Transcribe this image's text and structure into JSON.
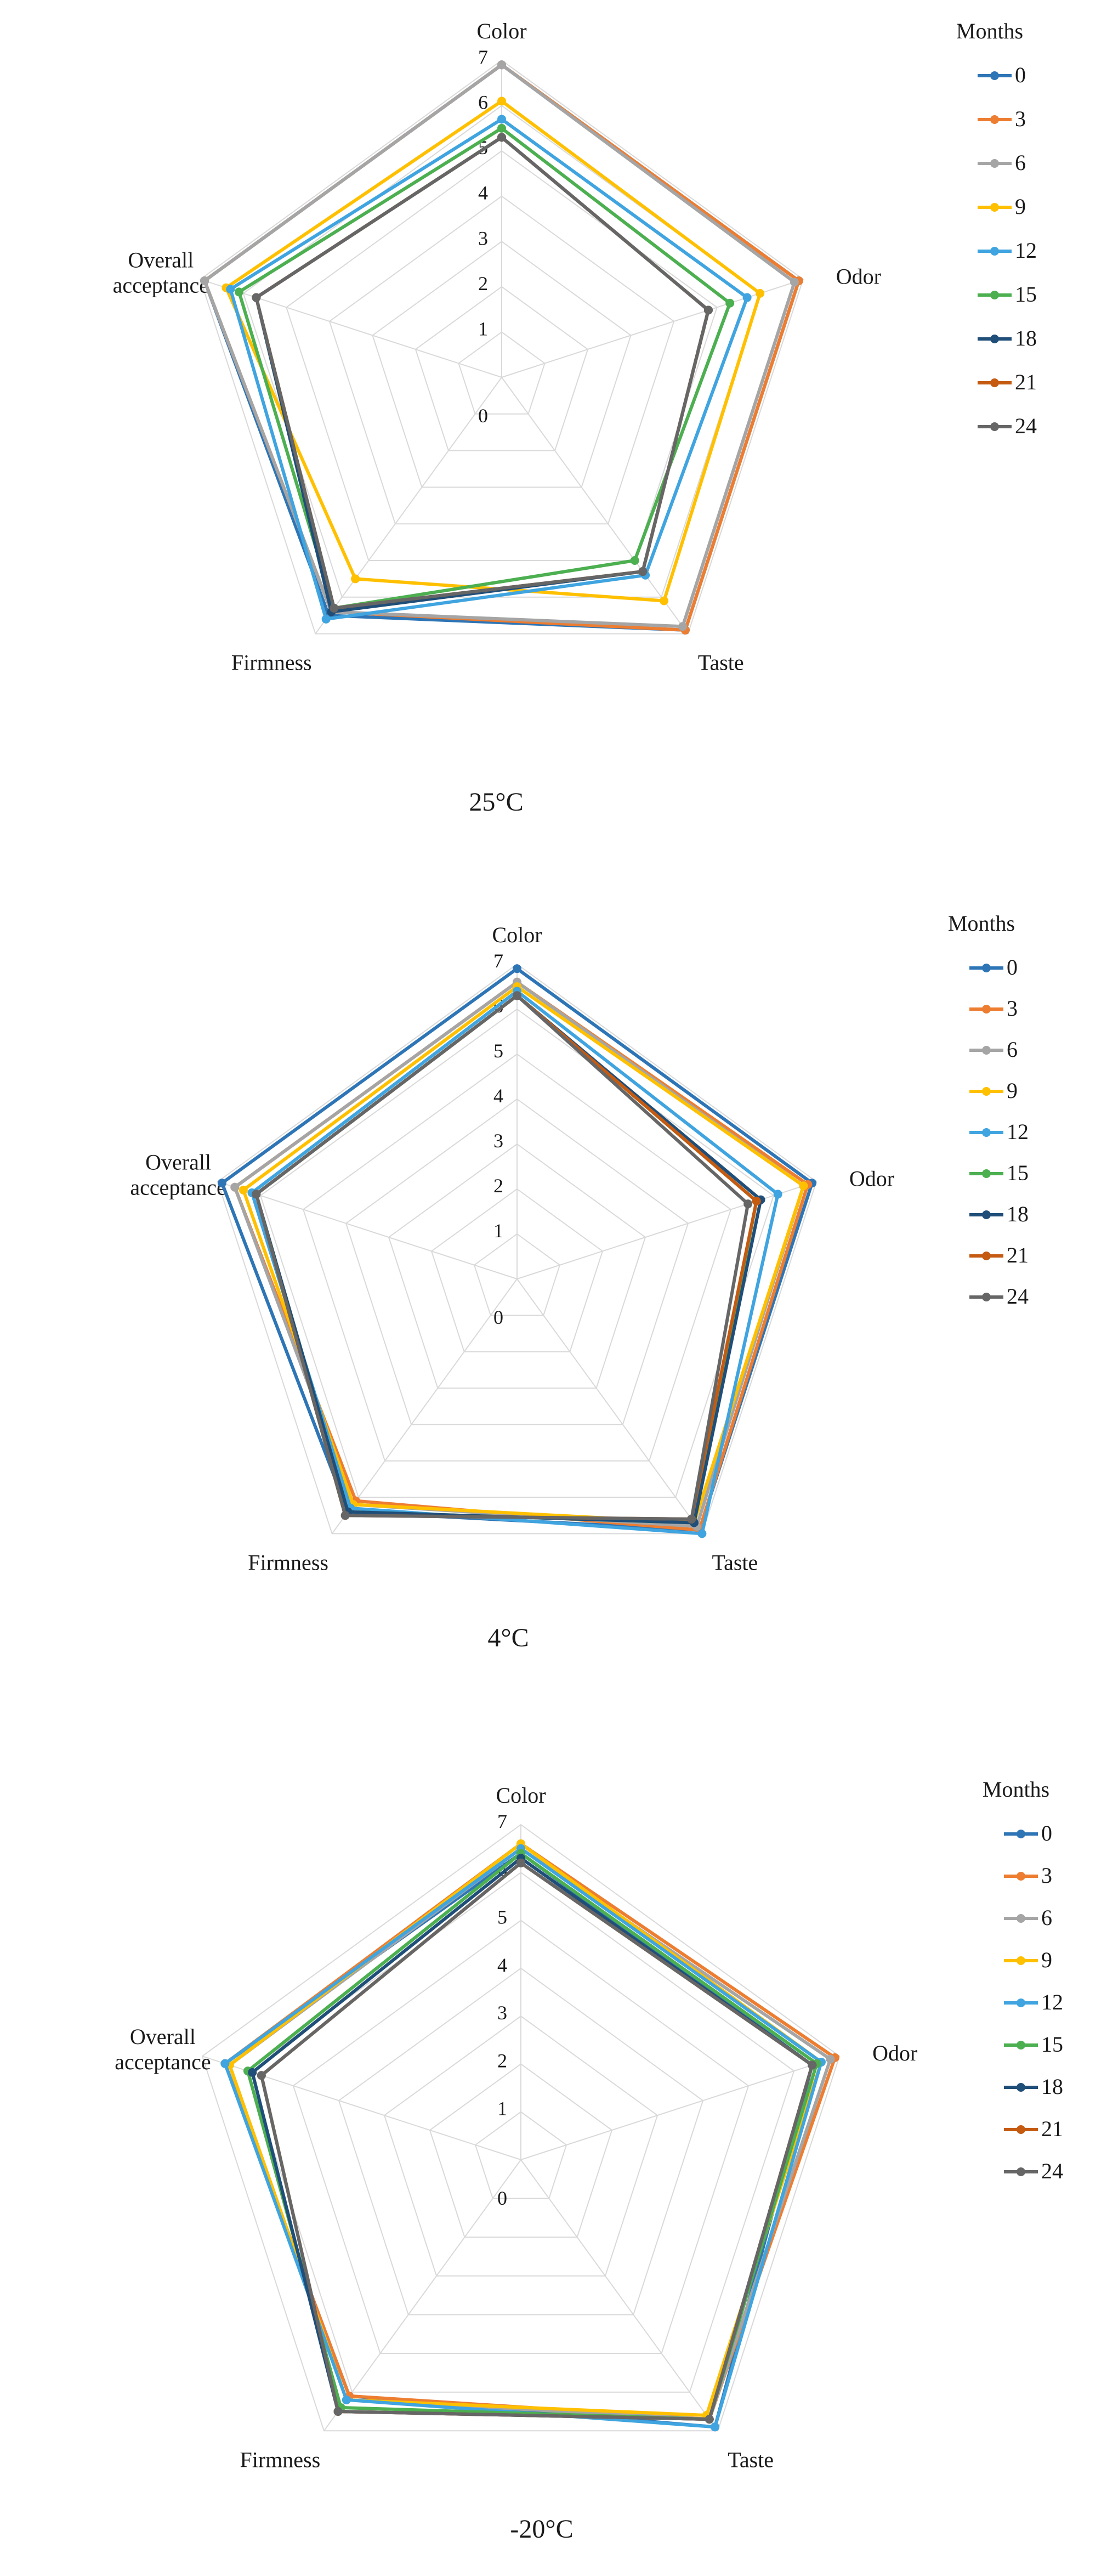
{
  "colors": {
    "0": "#2E75B6",
    "3": "#ED7D31",
    "6": "#A5A5A5",
    "9": "#FFC000",
    "12": "#3FA4DF",
    "15": "#4CAF50",
    "18": "#1F4E79",
    "21": "#C55A11",
    "24": "#666666"
  },
  "chart_data": [
    {
      "type": "radar",
      "caption": "25°C",
      "axes": [
        "Color",
        "Odor",
        "Taste",
        "Firmness",
        "Overall acceptance"
      ],
      "r_ticks": [
        "0",
        "1",
        "2",
        "3",
        "4",
        "5",
        "6",
        "7"
      ],
      "rlim": [
        0,
        7
      ],
      "legend_title": "Months",
      "legend_position": "right",
      "grid": true,
      "series": [
        {
          "name": "0",
          "values": [
            6.9,
            6.9,
            6.9,
            6.5,
            6.9
          ]
        },
        {
          "name": "3",
          "values": [
            6.9,
            6.9,
            6.9,
            6.4,
            6.9
          ]
        },
        {
          "name": "6",
          "values": [
            6.9,
            6.8,
            6.8,
            6.4,
            6.9
          ]
        },
        {
          "name": "9",
          "values": [
            6.1,
            6.0,
            6.1,
            5.5,
            6.4
          ]
        },
        {
          "name": "12",
          "values": [
            5.7,
            5.7,
            5.4,
            6.6,
            6.3
          ]
        },
        {
          "name": "15",
          "values": [
            5.5,
            5.3,
            5.0,
            6.3,
            6.1
          ]
        },
        {
          "name": "18",
          "values": [
            5.3,
            4.8,
            5.3,
            6.4,
            5.7
          ]
        },
        {
          "name": "21",
          "values": [
            5.3,
            4.8,
            5.3,
            6.3,
            5.7
          ]
        },
        {
          "name": "24",
          "values": [
            5.3,
            4.8,
            5.3,
            6.3,
            5.7
          ]
        }
      ]
    },
    {
      "type": "radar",
      "caption": "4°C",
      "axes": [
        "Color",
        "Odor",
        "Taste",
        "Firmness",
        "Overall acceptance"
      ],
      "r_ticks": [
        "0",
        "1",
        "2",
        "3",
        "4",
        "5",
        "6",
        "7"
      ],
      "rlim": [
        0,
        7
      ],
      "legend_title": "Months",
      "legend_position": "right",
      "grid": true,
      "series": [
        {
          "name": "0",
          "values": [
            6.9,
            6.9,
            6.9,
            6.4,
            6.9
          ]
        },
        {
          "name": "3",
          "values": [
            6.6,
            6.8,
            6.9,
            6.1,
            6.6
          ]
        },
        {
          "name": "6",
          "values": [
            6.6,
            6.7,
            6.8,
            6.2,
            6.6
          ]
        },
        {
          "name": "9",
          "values": [
            6.5,
            6.7,
            6.7,
            6.2,
            6.4
          ]
        },
        {
          "name": "12",
          "values": [
            6.4,
            6.1,
            7.0,
            6.3,
            6.2
          ]
        },
        {
          "name": "15",
          "values": [
            6.3,
            5.6,
            6.7,
            6.4,
            6.1
          ]
        },
        {
          "name": "18",
          "values": [
            6.3,
            5.7,
            6.7,
            6.4,
            6.1
          ]
        },
        {
          "name": "21",
          "values": [
            6.3,
            5.6,
            6.6,
            6.5,
            6.1
          ]
        },
        {
          "name": "24",
          "values": [
            6.3,
            5.4,
            6.6,
            6.5,
            6.1
          ]
        }
      ]
    },
    {
      "type": "radar",
      "caption": "-20°C",
      "axes": [
        "Color",
        "Odor",
        "Taste",
        "Firmness",
        "Overall acceptance"
      ],
      "r_ticks": [
        "0",
        "1",
        "2",
        "3",
        "4",
        "5",
        "6",
        "7"
      ],
      "rlim": [
        0,
        7
      ],
      "legend_title": "Months",
      "legend_position": "right",
      "grid": true,
      "series": [
        {
          "name": "0",
          "values": [
            6.4,
            6.4,
            6.9,
            6.1,
            6.5
          ]
        },
        {
          "name": "3",
          "values": [
            6.6,
            6.9,
            6.7,
            6.1,
            6.5
          ]
        },
        {
          "name": "6",
          "values": [
            6.5,
            6.8,
            6.7,
            6.2,
            6.4
          ]
        },
        {
          "name": "9",
          "values": [
            6.6,
            6.6,
            6.6,
            6.2,
            6.4
          ]
        },
        {
          "name": "12",
          "values": [
            6.5,
            6.6,
            6.9,
            6.2,
            6.5
          ]
        },
        {
          "name": "15",
          "values": [
            6.4,
            6.5,
            6.7,
            6.4,
            6.0
          ]
        },
        {
          "name": "18",
          "values": [
            6.3,
            6.4,
            6.7,
            6.5,
            5.9
          ]
        },
        {
          "name": "21",
          "values": [
            6.2,
            6.4,
            6.7,
            6.5,
            5.7
          ]
        },
        {
          "name": "24",
          "values": [
            6.2,
            6.4,
            6.7,
            6.5,
            5.7
          ]
        }
      ]
    }
  ]
}
